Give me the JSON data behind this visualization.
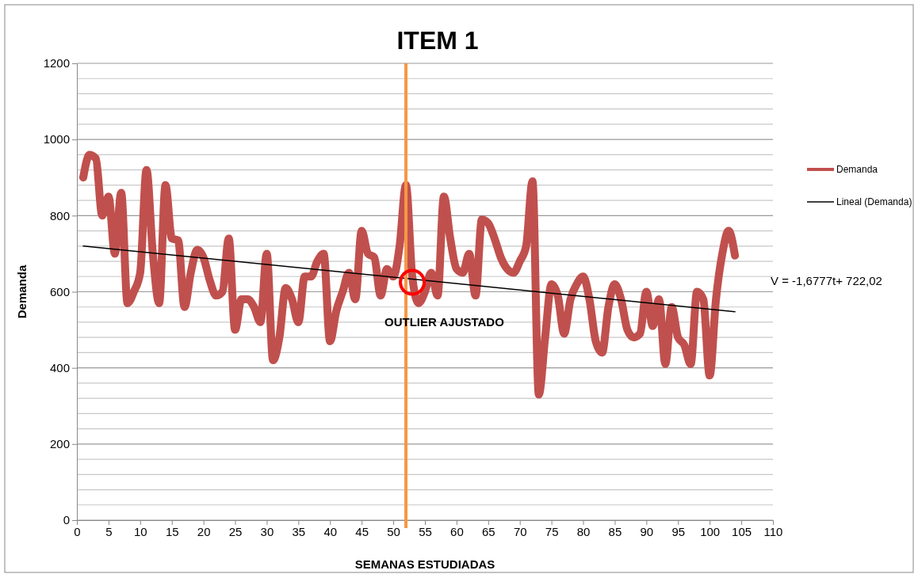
{
  "chart_data": {
    "type": "line",
    "title": "ITEM 1",
    "xlabel": "SEMANAS ESTUDIADAS",
    "ylabel": "Demanda",
    "xlim": [
      0,
      110
    ],
    "xticks": [
      0,
      5,
      10,
      15,
      20,
      25,
      30,
      35,
      40,
      45,
      50,
      55,
      60,
      65,
      70,
      75,
      80,
      85,
      90,
      95,
      100,
      105,
      110
    ],
    "ylim": [
      0,
      1200
    ],
    "yticks": [
      0,
      {
        "value": 40,
        "label": null
      },
      {
        "value": 80,
        "label": null
      },
      {
        "value": 120,
        "label": null
      },
      {
        "value": 160,
        "label": null
      },
      200,
      {
        "value": 240,
        "label": null
      },
      {
        "value": 280,
        "label": null
      },
      {
        "value": 320,
        "label": null
      },
      {
        "value": 360,
        "label": null
      },
      400,
      {
        "value": 440,
        "label": null
      },
      {
        "value": 480,
        "label": null
      },
      {
        "value": 520,
        "label": null
      },
      {
        "value": 560,
        "label": null
      },
      600,
      {
        "value": 640,
        "label": null
      },
      {
        "value": 680,
        "label": null
      },
      {
        "value": 720,
        "label": null
      },
      {
        "value": 760,
        "label": null
      },
      800,
      {
        "value": 840,
        "label": null
      },
      {
        "value": 880,
        "label": null
      },
      {
        "value": 920,
        "label": null
      },
      {
        "value": 960,
        "label": null
      },
      1000,
      {
        "value": 1040,
        "label": null
      },
      {
        "value": 1080,
        "label": null
      },
      {
        "value": 1120,
        "label": null
      },
      {
        "value": 1160,
        "label": null
      },
      1200
    ],
    "grid": "y",
    "legend": "right",
    "marker": "none",
    "series": [
      {
        "name": "Demanda",
        "color": "#c0504d",
        "x": [
          1,
          2,
          3,
          4,
          5,
          6,
          7,
          8,
          9,
          10,
          11,
          12,
          13,
          14,
          15,
          16,
          17,
          18,
          19,
          20,
          21,
          22,
          23,
          24,
          25,
          26,
          27,
          28,
          29,
          30,
          31,
          32,
          33,
          34,
          35,
          36,
          37,
          38,
          39,
          40,
          41,
          42,
          43,
          44,
          45,
          46,
          47,
          48,
          49,
          50,
          51,
          52,
          53,
          54,
          55,
          56,
          57,
          58,
          59,
          60,
          61,
          62,
          63,
          64,
          65,
          66,
          67,
          68,
          69,
          70,
          71,
          72,
          73,
          74,
          75,
          76,
          77,
          78,
          79,
          80,
          81,
          82,
          83,
          84,
          85,
          86,
          87,
          88,
          89,
          90,
          91,
          92,
          93,
          94,
          95,
          96,
          97,
          98,
          99,
          100,
          101,
          102,
          103,
          104
        ],
        "values": [
          900,
          960,
          950,
          800,
          850,
          700,
          860,
          570,
          600,
          650,
          920,
          700,
          570,
          880,
          740,
          735,
          560,
          650,
          710,
          690,
          630,
          590,
          600,
          740,
          500,
          580,
          580,
          560,
          520,
          700,
          420,
          480,
          610,
          580,
          520,
          640,
          640,
          680,
          700,
          470,
          550,
          600,
          650,
          580,
          760,
          700,
          690,
          590,
          660,
          640,
          720,
          880,
          640,
          570,
          600,
          650,
          590,
          850,
          740,
          660,
          650,
          700,
          590,
          790,
          780,
          740,
          690,
          660,
          650,
          680,
          720,
          890,
          330,
          480,
          620,
          590,
          490,
          580,
          620,
          640,
          580,
          470,
          440,
          560,
          620,
          580,
          500,
          480,
          490,
          600,
          510,
          580,
          410,
          560,
          480,
          460,
          410,
          600,
          580,
          380,
          580,
          700,
          760,
          695
        ]
      },
      {
        "name": "Lineal (Demanda)",
        "color": "#000000",
        "x": [
          1,
          104
        ],
        "values": [
          720.34,
          547.54
        ]
      }
    ],
    "ref_lines": [
      {
        "axis": "x",
        "value": 52,
        "color": "#f79646"
      }
    ],
    "annotations": [
      {
        "text": "OUTLIER AJUSTADO",
        "x": 53,
        "y": 625
      },
      "V = -1,6777t+ 722,02"
    ]
  }
}
